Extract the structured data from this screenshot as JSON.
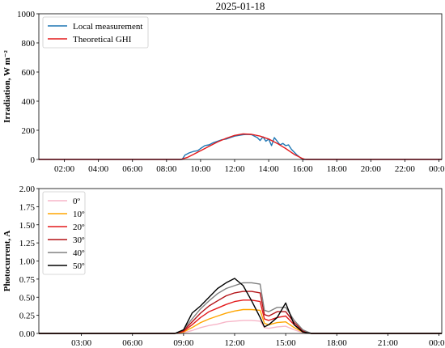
{
  "chart_data": [
    {
      "type": "line",
      "title": "2025-01-18",
      "xlabel": "",
      "ylabel": "Irradiation, W m⁻²",
      "xlim": [
        "00:30",
        "24:10"
      ],
      "ylim": [
        0,
        1000
      ],
      "yticks": [
        "0",
        "200",
        "400",
        "600",
        "800",
        "1000"
      ],
      "xticks": [
        "02:00",
        "04:00",
        "06:00",
        "08:00",
        "10:00",
        "12:00",
        "14:00",
        "16:00",
        "18:00",
        "20:00",
        "22:00",
        "00:00"
      ],
      "legend": "top-left",
      "series": [
        {
          "name": "Local measurement",
          "color": "#1f77b4",
          "x": [
            "00:30",
            "08:55",
            "09:05",
            "09:20",
            "09:35",
            "09:50",
            "10:00",
            "10:15",
            "10:30",
            "10:45",
            "11:00",
            "11:15",
            "11:30",
            "11:45",
            "12:00",
            "12:15",
            "12:30",
            "12:45",
            "13:00",
            "13:10",
            "13:20",
            "13:30",
            "13:40",
            "13:50",
            "14:00",
            "14:10",
            "14:20",
            "14:30",
            "14:40",
            "14:50",
            "15:00",
            "15:10",
            "15:20",
            "15:30",
            "15:40",
            "15:50",
            "16:00",
            "24:10"
          ],
          "y": [
            0,
            0,
            30,
            45,
            55,
            60,
            75,
            95,
            100,
            115,
            125,
            135,
            140,
            150,
            160,
            165,
            170,
            172,
            170,
            160,
            150,
            130,
            155,
            125,
            140,
            95,
            150,
            125,
            100,
            110,
            95,
            100,
            70,
            50,
            30,
            15,
            0,
            0
          ]
        },
        {
          "name": "Theoretical GHI",
          "color": "#e31a1c",
          "x": [
            "00:30",
            "08:50",
            "09:15",
            "09:30",
            "10:00",
            "10:30",
            "11:00",
            "11:30",
            "12:00",
            "12:30",
            "13:00",
            "13:30",
            "14:00",
            "14:30",
            "15:00",
            "15:30",
            "16:00",
            "16:10",
            "24:10"
          ],
          "y": [
            0,
            0,
            15,
            30,
            60,
            90,
            120,
            145,
            165,
            175,
            172,
            160,
            140,
            110,
            75,
            35,
            5,
            0,
            0
          ]
        }
      ]
    },
    {
      "type": "line",
      "title": "",
      "xlabel": "",
      "ylabel": "Photocurrent, A",
      "xlim": [
        "00:30",
        "24:10"
      ],
      "ylim": [
        0,
        2.0
      ],
      "yticks": [
        "0.00",
        "0.25",
        "0.50",
        "0.75",
        "1.00",
        "1.25",
        "1.50",
        "1.75",
        "2.00"
      ],
      "xticks": [
        "03:00",
        "06:00",
        "09:00",
        "12:00",
        "15:00",
        "18:00",
        "21:00",
        "00:00"
      ],
      "legend": "top-left",
      "x": [
        "00:30",
        "08:30",
        "09:00",
        "09:30",
        "10:00",
        "10:30",
        "11:00",
        "11:30",
        "12:00",
        "12:30",
        "13:00",
        "13:30",
        "13:45",
        "14:00",
        "14:30",
        "15:00",
        "15:30",
        "16:00",
        "16:30",
        "24:10"
      ],
      "series": [
        {
          "name": "0º",
          "color": "#f7b6c8",
          "y": [
            0,
            0,
            0.01,
            0.04,
            0.08,
            0.11,
            0.13,
            0.16,
            0.17,
            0.18,
            0.18,
            0.17,
            0.08,
            0.07,
            0.09,
            0.1,
            0.05,
            0.01,
            0,
            0
          ]
        },
        {
          "name": "10º",
          "color": "#ffa500",
          "y": [
            0,
            0,
            0.02,
            0.08,
            0.15,
            0.2,
            0.24,
            0.28,
            0.31,
            0.33,
            0.33,
            0.32,
            0.14,
            0.12,
            0.15,
            0.16,
            0.08,
            0.02,
            0,
            0
          ]
        },
        {
          "name": "20º",
          "color": "#e31a1c",
          "y": [
            0,
            0,
            0.03,
            0.12,
            0.22,
            0.3,
            0.35,
            0.4,
            0.44,
            0.46,
            0.46,
            0.44,
            0.2,
            0.18,
            0.22,
            0.24,
            0.12,
            0.03,
            0,
            0
          ]
        },
        {
          "name": "30º",
          "color": "#b31217",
          "y": [
            0,
            0,
            0.04,
            0.16,
            0.28,
            0.38,
            0.45,
            0.52,
            0.56,
            0.58,
            0.58,
            0.56,
            0.26,
            0.24,
            0.3,
            0.3,
            0.15,
            0.04,
            0,
            0
          ]
        },
        {
          "name": "40º",
          "color": "#808080",
          "y": [
            0,
            0,
            0.05,
            0.2,
            0.34,
            0.45,
            0.55,
            0.62,
            0.66,
            0.7,
            0.7,
            0.68,
            0.32,
            0.3,
            0.36,
            0.36,
            0.18,
            0.05,
            0,
            0
          ]
        },
        {
          "name": "50º",
          "color": "#000000",
          "y": [
            0,
            0,
            0.05,
            0.28,
            0.38,
            0.5,
            0.62,
            0.7,
            0.76,
            0.66,
            0.45,
            0.22,
            0.09,
            0.12,
            0.22,
            0.42,
            0.12,
            0.02,
            0,
            0
          ]
        }
      ]
    }
  ]
}
